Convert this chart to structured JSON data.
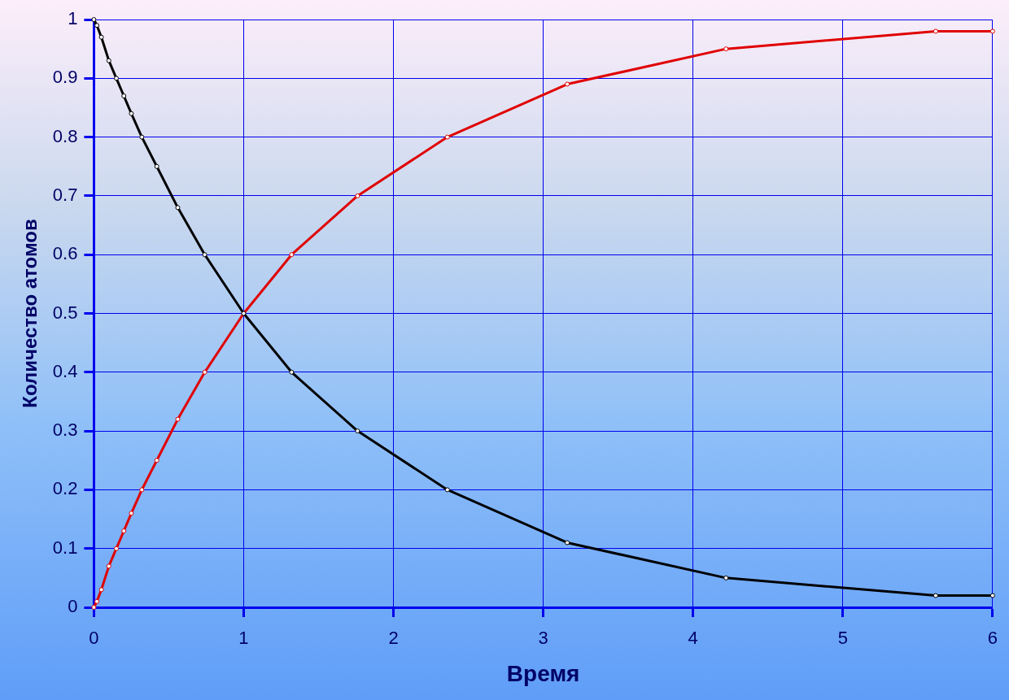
{
  "chart_data": {
    "type": "line",
    "xlabel": "Время",
    "ylabel": "Количество атомов",
    "xlim": [
      0,
      6
    ],
    "xticks": [
      0,
      1,
      2,
      3,
      4,
      5,
      6
    ],
    "ylim": [
      0,
      1
    ],
    "yticks": [
      0,
      0.1,
      0.2,
      0.3,
      0.4,
      0.5,
      0.6,
      0.7,
      0.8,
      0.9,
      1
    ],
    "grid": true,
    "legend": false,
    "marker": "circle",
    "line_style": "solid",
    "series": [
      {
        "color": "#000000",
        "x": [
          0,
          0.02,
          0.05,
          0.1,
          0.15,
          0.2,
          0.25,
          0.32,
          0.42,
          0.56,
          0.74,
          1,
          1.32,
          1.76,
          2.36,
          3.16,
          4.22,
          5.62,
          6
        ],
        "values": [
          1,
          0.99,
          0.97,
          0.93,
          0.9,
          0.87,
          0.84,
          0.8,
          0.75,
          0.68,
          0.6,
          0.5,
          0.4,
          0.3,
          0.2,
          0.11,
          0.05,
          0.02,
          0.02
        ]
      },
      {
        "color": "#e00000",
        "x": [
          0,
          0.02,
          0.05,
          0.1,
          0.15,
          0.2,
          0.25,
          0.32,
          0.42,
          0.56,
          0.74,
          1,
          1.32,
          1.76,
          2.36,
          3.16,
          4.22,
          5.62,
          6
        ],
        "values": [
          0,
          0.01,
          0.03,
          0.07,
          0.1,
          0.13,
          0.16,
          0.2,
          0.25,
          0.32,
          0.4,
          0.5,
          0.6,
          0.7,
          0.8,
          0.89,
          0.95,
          0.98,
          0.98
        ]
      }
    ]
  }
}
